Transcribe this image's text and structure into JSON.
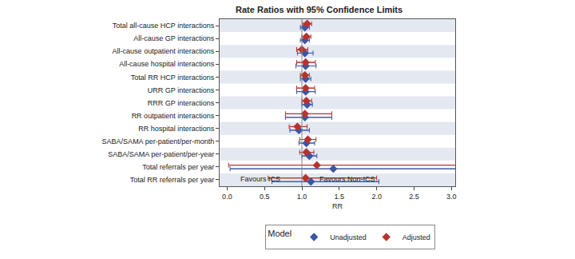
{
  "chart_data": {
    "type": "forest",
    "title": "Rate Ratios with 95% Confidence Limits",
    "x_label": "RR",
    "orientation": "horizontal",
    "categories": [
      "Total all-cause HCP interactions",
      "All-cause GP interactions",
      "All-cause outpatient interactions",
      "All-cause hospital interactions",
      "Total RR HCP interactions",
      "URR GP interactions",
      "RRR GP interactions",
      "RR outpatient interactions",
      "RR hospital interactions",
      "SABA/SAMA per-patient/per-month",
      "SABA/SAMA per-patient/per-year",
      "Total referrals per year",
      "Total RR referrals per year"
    ],
    "series": [
      {
        "name": "Unadjusted",
        "color": "#3b55a5",
        "marker": "diamond",
        "values": [
          1.04,
          1.04,
          1.04,
          1.05,
          1.05,
          1.05,
          1.07,
          1.04,
          0.96,
          1.06,
          1.1,
          1.42,
          1.12
        ],
        "ci_low": [
          0.98,
          0.98,
          0.94,
          0.92,
          0.98,
          0.93,
          1.0,
          0.78,
          0.84,
          0.96,
          1.0,
          0.04,
          0.6
        ],
        "ci_high": [
          1.1,
          1.1,
          1.15,
          1.19,
          1.12,
          1.18,
          1.14,
          1.4,
          1.1,
          1.17,
          1.2,
          5.0,
          2.03
        ]
      },
      {
        "name": "Adjusted",
        "color": "#b8322d",
        "marker": "diamond",
        "values": [
          1.07,
          1.06,
          1.0,
          1.05,
          1.04,
          1.05,
          1.06,
          1.04,
          0.94,
          1.08,
          1.06,
          1.2,
          1.05
        ],
        "ci_low": [
          1.01,
          1.0,
          0.93,
          0.93,
          0.98,
          0.93,
          1.0,
          0.78,
          0.83,
          0.97,
          0.97,
          0.02,
          0.55
        ],
        "ci_high": [
          1.13,
          1.12,
          1.08,
          1.18,
          1.1,
          1.17,
          1.13,
          1.4,
          1.07,
          1.19,
          1.16,
          3.8,
          2.0
        ]
      }
    ],
    "xlim": [
      -0.1,
      3.05
    ],
    "xticks": [
      {
        "value": 0,
        "label": "0.0"
      },
      0.5,
      {
        "value": 1,
        "label": "1.0"
      },
      1.5,
      {
        "value": 2,
        "label": "2.0"
      },
      2.5,
      {
        "value": 3,
        "label": "3.0"
      }
    ],
    "ref_line": 1,
    "annotations": [
      "Favours ICS",
      "Favours Non-ICS"
    ],
    "legend": "bottom",
    "legend_title": "Model",
    "grid": false
  }
}
